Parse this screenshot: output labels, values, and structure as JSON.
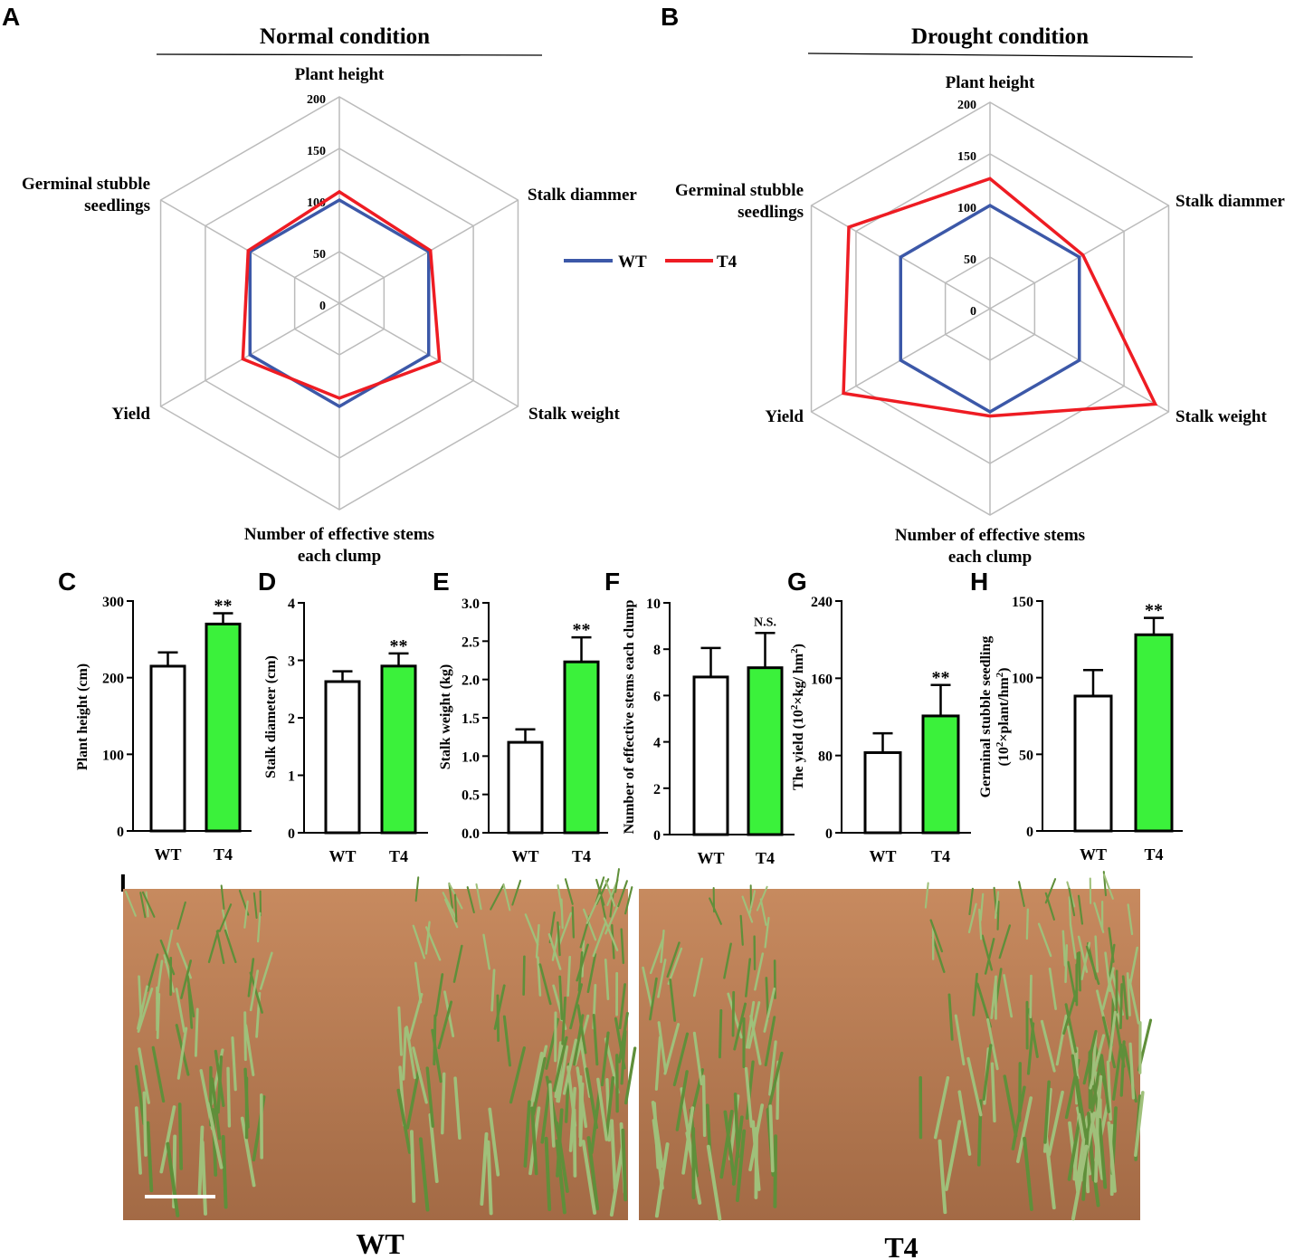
{
  "panel_labels": [
    "A",
    "B",
    "C",
    "D",
    "E",
    "F",
    "G",
    "H",
    "I"
  ],
  "colors": {
    "wt_line": "#3c58a8",
    "t4_line": "#ee1c23",
    "t4_bar": "#3bf13b",
    "wt_bar": "#ffffff",
    "grid": "#bbbbbb"
  },
  "chart_data": [
    {
      "panel": "A",
      "type": "radar",
      "title": "Normal condition",
      "axes": [
        "Plant height",
        "Stalk diammer",
        "Stalk weight",
        "Number of effective stems each clump",
        "Yield",
        "Germinal stubble seedlings"
      ],
      "axis_label_lines": [
        [
          "Plant height"
        ],
        [
          "Stalk diammer"
        ],
        [
          "Stalk weight"
        ],
        [
          "Number of effective stems",
          "each clump"
        ],
        [
          "Yield"
        ],
        [
          "Germinal stubble",
          "seedlings"
        ]
      ],
      "ticks": [
        0,
        50,
        100,
        150,
        200
      ],
      "rmax": 200,
      "series": [
        {
          "name": "WT",
          "values": [
            100,
            100,
            100,
            100,
            100,
            100
          ]
        },
        {
          "name": "T4",
          "values": [
            108,
            102,
            112,
            92,
            108,
            102
          ]
        }
      ]
    },
    {
      "panel": "B",
      "type": "radar",
      "title": "Drought condition",
      "axes": [
        "Plant height",
        "Stalk diammer",
        "Stalk weight",
        "Number of effective stems each clump",
        "Yield",
        "Germinal stubble seedlings"
      ],
      "axis_label_lines": [
        [
          "Plant height"
        ],
        [
          "Stalk diammer"
        ],
        [
          "Stalk weight"
        ],
        [
          "Number of effective stems",
          "each clump"
        ],
        [
          "Yield"
        ],
        [
          "Germinal stubble",
          "seedlings"
        ]
      ],
      "ticks": [
        0,
        50,
        100,
        150,
        200
      ],
      "rmax": 200,
      "series": [
        {
          "name": "WT",
          "values": [
            100,
            100,
            100,
            100,
            100,
            100
          ]
        },
        {
          "name": "T4",
          "values": [
            126,
            104,
            185,
            104,
            164,
            158
          ]
        }
      ]
    },
    {
      "panel": "C",
      "type": "bar",
      "categories": [
        "WT",
        "T4"
      ],
      "values": [
        215,
        270
      ],
      "errors": [
        18,
        14
      ],
      "ylabel": "Plant height (cm)",
      "ylim": [
        0,
        300
      ],
      "yticks": [
        "0",
        "100",
        "200",
        "300"
      ],
      "significance": "**"
    },
    {
      "panel": "D",
      "type": "bar",
      "categories": [
        "WT",
        "T4"
      ],
      "values": [
        2.63,
        2.9
      ],
      "errors": [
        0.18,
        0.22
      ],
      "ylabel": "Stalk diameter (cm)",
      "ylim": [
        0,
        4
      ],
      "yticks": [
        "0",
        "1",
        "2",
        "3",
        "4"
      ],
      "significance": "**"
    },
    {
      "panel": "E",
      "type": "bar",
      "categories": [
        "WT",
        "T4"
      ],
      "values": [
        1.18,
        2.23
      ],
      "errors": [
        0.17,
        0.32
      ],
      "ylabel": "Stalk weight (kg)",
      "ylim": [
        0,
        3
      ],
      "yticks": [
        "0.0",
        "0.5",
        "1.0",
        "1.5",
        "2.0",
        "2.5",
        "3.0"
      ],
      "significance": "**"
    },
    {
      "panel": "F",
      "type": "bar",
      "categories": [
        "WT",
        "T4"
      ],
      "values": [
        6.8,
        7.2
      ],
      "errors": [
        1.25,
        1.5
      ],
      "ylabel": "Number of effective stems each clump",
      "ylim": [
        0,
        10
      ],
      "yticks": [
        "0",
        "2",
        "4",
        "6",
        "8",
        "10"
      ],
      "significance": "N.S."
    },
    {
      "panel": "G",
      "type": "bar",
      "categories": [
        "WT",
        "T4"
      ],
      "values": [
        83,
        121
      ],
      "errors": [
        20,
        32
      ],
      "ylabel": [
        "The yield (10",
        "2",
        "×kg/ hm",
        "2",
        ")"
      ],
      "ylim": [
        0,
        240
      ],
      "yticks": [
        "0",
        "80",
        "160",
        "240"
      ],
      "significance": "**"
    },
    {
      "panel": "H",
      "type": "bar",
      "categories": [
        "WT",
        "T4"
      ],
      "values": [
        88,
        128
      ],
      "errors": [
        17,
        11
      ],
      "ylabel": "Germinal stubble seedling",
      "ylabel2": [
        "(10",
        "2",
        "×plant/hm",
        "2",
        ")"
      ],
      "ylim": [
        0,
        150
      ],
      "yticks": [
        "0",
        "50",
        "100",
        "150"
      ],
      "significance": "**"
    }
  ],
  "photos": {
    "left_caption": "WT",
    "right_caption": "T4",
    "colors": {
      "soil": "#c78a5f",
      "soil_dark": "#a36a45",
      "plant": "#5f8f3a",
      "plant_light": "#9fc07a",
      "sky": "#c9d3b8"
    }
  }
}
